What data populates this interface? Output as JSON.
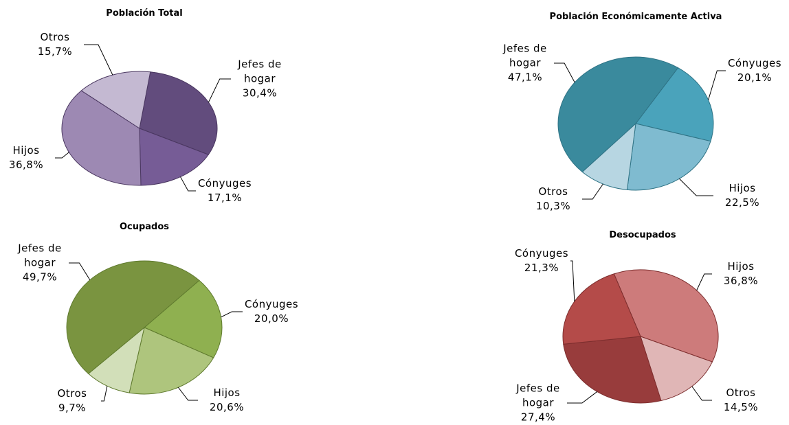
{
  "chart_data": [
    {
      "type": "pie",
      "title": "Población Total",
      "categories": [
        "Jefes de hogar",
        "Cónyuges",
        "Hijos",
        "Otros"
      ],
      "values": [
        30.4,
        17.1,
        36.8,
        15.7
      ],
      "value_labels": [
        "30,4%",
        "17,1%",
        "36,8%",
        "15,7%"
      ],
      "colors": [
        "#624c7d",
        "#765c96",
        "#9d89b3",
        "#c4b9d2"
      ]
    },
    {
      "type": "pie",
      "title": "Población Económicamente Activa",
      "categories": [
        "Cónyuges",
        "Hijos",
        "Otros",
        "Jefes de hogar"
      ],
      "values": [
        20.1,
        22.5,
        10.3,
        47.1
      ],
      "value_labels": [
        "20,1%",
        "22,5%",
        "10,3%",
        "47,1%"
      ],
      "colors": [
        "#4aa3bb",
        "#7fbbd0",
        "#b7d6e2",
        "#3a8a9d"
      ]
    },
    {
      "type": "pie",
      "title": "Ocupados",
      "categories": [
        "Cónyuges",
        "Hijos",
        "Otros",
        "Jefes de hogar"
      ],
      "values": [
        20.0,
        20.6,
        9.7,
        49.7
      ],
      "value_labels": [
        "20,0%",
        "20,6%",
        "9,7%",
        "49,7%"
      ],
      "colors": [
        "#8fb050",
        "#aec57d",
        "#d2dfb9",
        "#7a9440"
      ]
    },
    {
      "type": "pie",
      "title": "Desocupados",
      "categories": [
        "Hijos",
        "Otros",
        "Jefes de hogar",
        "Cónyuges"
      ],
      "values": [
        36.8,
        14.5,
        27.4,
        21.3
      ],
      "value_labels": [
        "36,8%",
        "14,5%",
        "27,4%",
        "21,3%"
      ],
      "colors": [
        "#cd7b7b",
        "#e0b6b6",
        "#983c3c",
        "#b44b49"
      ]
    }
  ]
}
